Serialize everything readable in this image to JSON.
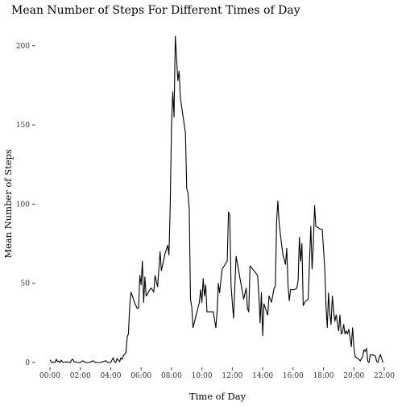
{
  "chart_data": {
    "type": "line",
    "title": "Mean Number of Steps For Different Times of Day",
    "xlabel": "Time of Day",
    "ylabel": "Mean Number of Steps",
    "xlim": [
      "00:00",
      "22:00"
    ],
    "ylim": [
      0,
      206
    ],
    "x_ticks": [
      "00:00",
      "02:00",
      "04:00",
      "06:00",
      "08:00",
      "10:00",
      "12:00",
      "14:00",
      "16:00",
      "18:00",
      "20:00",
      "22:00"
    ],
    "y_ticks": [
      0,
      50,
      100,
      150,
      200
    ],
    "grid": false,
    "legend": "none",
    "series": [
      {
        "color": "#000000",
        "points": [
          [
            "00:00",
            1.7
          ],
          [
            "00:05",
            0.3
          ],
          [
            "00:10",
            0.1
          ],
          [
            "00:15",
            0.2
          ],
          [
            "00:20",
            0.0
          ],
          [
            "00:25",
            2.1
          ],
          [
            "00:30",
            0.5
          ],
          [
            "00:35",
            0.9
          ],
          [
            "00:40",
            0.0
          ],
          [
            "00:45",
            1.5
          ],
          [
            "00:50",
            0.2
          ],
          [
            "00:55",
            0.2
          ],
          [
            "01:00",
            0.3
          ],
          [
            "01:10",
            0.4
          ],
          [
            "01:15",
            0.0
          ],
          [
            "01:20",
            0.0
          ],
          [
            "01:25",
            1.5
          ],
          [
            "01:30",
            2.1
          ],
          [
            "01:35",
            0.5
          ],
          [
            "01:40",
            0.3
          ],
          [
            "01:50",
            0.1
          ],
          [
            "02:00",
            0.0
          ],
          [
            "02:10",
            1.1
          ],
          [
            "02:20",
            0.0
          ],
          [
            "02:30",
            0.0
          ],
          [
            "02:40",
            0.3
          ],
          [
            "02:50",
            1.1
          ],
          [
            "03:00",
            0.0
          ],
          [
            "03:10",
            0.0
          ],
          [
            "03:20",
            0.0
          ],
          [
            "03:30",
            0.6
          ],
          [
            "03:40",
            1.1
          ],
          [
            "03:50",
            0.0
          ],
          [
            "04:00",
            0.0
          ],
          [
            "04:05",
            1.6
          ],
          [
            "04:10",
            3.0
          ],
          [
            "04:15",
            0.4
          ],
          [
            "04:20",
            0.0
          ],
          [
            "04:25",
            2.5
          ],
          [
            "04:30",
            1.5
          ],
          [
            "04:35",
            0.5
          ],
          [
            "04:40",
            2.9
          ],
          [
            "04:45",
            2.0
          ],
          [
            "04:50",
            4.3
          ],
          [
            "04:55",
            5.2
          ],
          [
            "05:00",
            6.4
          ],
          [
            "05:05",
            16.0
          ],
          [
            "05:10",
            18.2
          ],
          [
            "05:15",
            36.0
          ],
          [
            "05:20",
            44.5
          ],
          [
            "05:35",
            37.5
          ],
          [
            "05:45",
            34.0
          ],
          [
            "05:50",
            34.5
          ],
          [
            "05:55",
            55.0
          ],
          [
            "06:00",
            49.0
          ],
          [
            "06:05",
            64.0
          ],
          [
            "06:10",
            38.0
          ],
          [
            "06:15",
            54.0
          ],
          [
            "06:20",
            42.0
          ],
          [
            "06:25",
            43.0
          ],
          [
            "06:30",
            45.0
          ],
          [
            "06:40",
            47.0
          ],
          [
            "06:50",
            44.5
          ],
          [
            "06:55",
            55.0
          ],
          [
            "07:00",
            51.0
          ],
          [
            "07:05",
            48.0
          ],
          [
            "07:10",
            59.0
          ],
          [
            "07:15",
            70.0
          ],
          [
            "07:20",
            58.0
          ],
          [
            "07:35",
            69.0
          ],
          [
            "07:45",
            74.0
          ],
          [
            "07:50",
            68.0
          ],
          [
            "07:55",
            100.0
          ],
          [
            "08:00",
            150.0
          ],
          [
            "08:05",
            171.0
          ],
          [
            "08:10",
            155.0
          ],
          [
            "08:15",
            206.0
          ],
          [
            "08:25",
            178.0
          ],
          [
            "08:30",
            184.0
          ],
          [
            "08:35",
            167.0
          ],
          [
            "08:55",
            145.0
          ],
          [
            "09:00",
            110.0
          ],
          [
            "09:05",
            107.0
          ],
          [
            "09:10",
            97.0
          ],
          [
            "09:15",
            40.0
          ],
          [
            "09:20",
            35.0
          ],
          [
            "09:25",
            22.0
          ],
          [
            "09:50",
            38.0
          ],
          [
            "09:55",
            46.0
          ],
          [
            "10:00",
            38.0
          ],
          [
            "10:05",
            53.0
          ],
          [
            "10:10",
            42.0
          ],
          [
            "10:15",
            49.0
          ],
          [
            "10:20",
            32.0
          ],
          [
            "10:25",
            32.0
          ],
          [
            "10:35",
            32.0
          ],
          [
            "10:40",
            32.0
          ],
          [
            "10:45",
            32.0
          ],
          [
            "10:50",
            27.0
          ],
          [
            "10:55",
            22.0
          ],
          [
            "11:00",
            32.0
          ],
          [
            "11:05",
            50.0
          ],
          [
            "11:10",
            44.0
          ],
          [
            "11:15",
            52.0
          ],
          [
            "11:20",
            59.0
          ],
          [
            "11:40",
            64.0
          ],
          [
            "11:45",
            95.0
          ],
          [
            "11:50",
            93.0
          ],
          [
            "11:55",
            49.0
          ],
          [
            "12:00",
            38.0
          ],
          [
            "12:05",
            28.0
          ],
          [
            "12:10",
            48.0
          ],
          [
            "12:15",
            67.0
          ],
          [
            "12:45",
            40.0
          ],
          [
            "12:55",
            47.0
          ],
          [
            "13:00",
            34.0
          ],
          [
            "13:05",
            32.0
          ],
          [
            "13:10",
            61.0
          ],
          [
            "13:40",
            55.0
          ],
          [
            "13:45",
            42.0
          ],
          [
            "13:50",
            25.0
          ],
          [
            "13:55",
            44.0
          ],
          [
            "14:00",
            17.0
          ],
          [
            "14:05",
            37.0
          ],
          [
            "14:20",
            30.0
          ],
          [
            "14:25",
            42.0
          ],
          [
            "14:30",
            40.0
          ],
          [
            "14:35",
            38.0
          ],
          [
            "14:45",
            47.0
          ],
          [
            "14:50",
            48.0
          ],
          [
            "14:55",
            89.0
          ],
          [
            "15:00",
            102.0
          ],
          [
            "15:05",
            88.0
          ],
          [
            "15:15",
            74.0
          ],
          [
            "15:20",
            68.0
          ],
          [
            "15:30",
            62.0
          ],
          [
            "15:35",
            72.0
          ],
          [
            "15:40",
            49.0
          ],
          [
            "15:45",
            39.0
          ],
          [
            "15:50",
            46.0
          ],
          [
            "16:05",
            46.0
          ],
          [
            "16:15",
            47.0
          ],
          [
            "16:20",
            52.0
          ],
          [
            "16:25",
            79.0
          ],
          [
            "16:30",
            64.0
          ],
          [
            "16:35",
            75.0
          ],
          [
            "16:40",
            36.0
          ],
          [
            "16:50",
            39.0
          ],
          [
            "17:00",
            40.0
          ],
          [
            "17:05",
            64.0
          ],
          [
            "17:10",
            86.0
          ],
          [
            "17:15",
            59.0
          ],
          [
            "17:20",
            75.0
          ],
          [
            "17:25",
            99.0
          ],
          [
            "17:30",
            86.0
          ],
          [
            "17:40",
            85.0
          ],
          [
            "17:45",
            84.5
          ],
          [
            "17:55",
            84.0
          ],
          [
            "18:05",
            60.0
          ],
          [
            "18:10",
            36.0
          ],
          [
            "18:15",
            22.0
          ],
          [
            "18:20",
            44.0
          ],
          [
            "18:25",
            31.0
          ],
          [
            "18:30",
            24.0
          ],
          [
            "18:35",
            42.0
          ],
          [
            "18:40",
            33.0
          ],
          [
            "18:45",
            26.0
          ],
          [
            "18:50",
            30.0
          ],
          [
            "19:00",
            20.0
          ],
          [
            "19:05",
            30.0
          ],
          [
            "19:10",
            18.0
          ],
          [
            "19:15",
            19.0
          ],
          [
            "19:20",
            24.0
          ],
          [
            "19:25",
            18.0
          ],
          [
            "19:30",
            20.0
          ],
          [
            "19:35",
            18.0
          ],
          [
            "19:40",
            21.0
          ],
          [
            "19:45",
            16.0
          ],
          [
            "19:50",
            10.0
          ],
          [
            "19:55",
            22.0
          ],
          [
            "20:00",
            10.0
          ],
          [
            "20:05",
            4.0
          ],
          [
            "20:10",
            3.0
          ],
          [
            "20:20",
            2.0
          ],
          [
            "20:25",
            1.0
          ],
          [
            "20:35",
            4.0
          ],
          [
            "20:40",
            8.0
          ],
          [
            "20:45",
            7.0
          ],
          [
            "20:50",
            9.0
          ],
          [
            "20:55",
            0.8
          ],
          [
            "21:00",
            0.0
          ],
          [
            "21:05",
            5.0
          ],
          [
            "21:20",
            4.5
          ],
          [
            "21:25",
            4.0
          ],
          [
            "21:30",
            0.7
          ],
          [
            "21:35",
            0.0
          ],
          [
            "21:40",
            3.0
          ],
          [
            "21:45",
            5.0
          ],
          [
            "21:55",
            0.0
          ]
        ]
      }
    ]
  }
}
